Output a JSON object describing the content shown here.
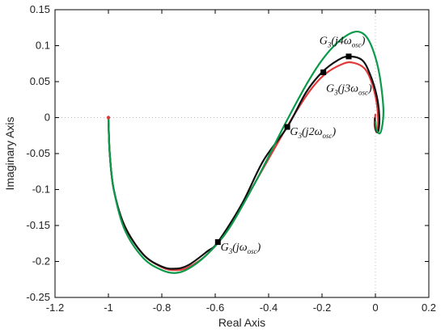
{
  "chart_data": {
    "type": "line",
    "title": "",
    "xlabel": "Real Axis",
    "ylabel": "Imaginary Axis",
    "xlim": [
      -1.2,
      0.2
    ],
    "ylim": [
      -0.25,
      0.15
    ],
    "xticks": [
      -1.2,
      -1,
      -0.8,
      -0.6,
      -0.4,
      -0.2,
      0,
      0.2
    ],
    "xtick_labels": [
      "-1.2",
      "-1",
      "-0.8",
      "-0.6",
      "-0.4",
      "-0.2",
      "0",
      "0.2"
    ],
    "yticks": [
      -0.25,
      -0.2,
      -0.15,
      -0.1,
      -0.05,
      0,
      0.05,
      0.1,
      0.15
    ],
    "ytick_labels": [
      "-0.25",
      "-0.2",
      "-0.15",
      "-0.1",
      "-0.05",
      "0",
      "0.05",
      "0.1",
      "0.15"
    ],
    "grid": false,
    "series": [
      {
        "color": "#e03a3a",
        "points": [
          [
            -1.0,
            0.0
          ],
          [
            -0.995,
            -0.05
          ],
          [
            -0.98,
            -0.1
          ],
          [
            -0.94,
            -0.15
          ],
          [
            -0.87,
            -0.19
          ],
          [
            -0.8,
            -0.208
          ],
          [
            -0.75,
            -0.212
          ],
          [
            -0.7,
            -0.208
          ],
          [
            -0.63,
            -0.19
          ],
          [
            -0.55,
            -0.155
          ],
          [
            -0.45,
            -0.09
          ],
          [
            -0.33,
            -0.012
          ],
          [
            -0.25,
            0.035
          ],
          [
            -0.19,
            0.06
          ],
          [
            -0.12,
            0.075
          ],
          [
            -0.08,
            0.076
          ],
          [
            -0.04,
            0.068
          ],
          [
            -0.015,
            0.05
          ],
          [
            0.005,
            0.02
          ],
          [
            0.01,
            -0.01
          ],
          [
            0.004,
            -0.02
          ],
          [
            -0.003,
            -0.01
          ],
          [
            0.0,
            0.005
          ]
        ]
      },
      {
        "color": "#111111",
        "points": [
          [
            -1.0,
            0.0
          ],
          [
            -0.995,
            -0.05
          ],
          [
            -0.98,
            -0.1
          ],
          [
            -0.94,
            -0.15
          ],
          [
            -0.87,
            -0.19
          ],
          [
            -0.8,
            -0.207
          ],
          [
            -0.75,
            -0.21
          ],
          [
            -0.7,
            -0.205
          ],
          [
            -0.63,
            -0.186
          ],
          [
            -0.59,
            -0.173
          ],
          [
            -0.5,
            -0.12
          ],
          [
            -0.42,
            -0.06
          ],
          [
            -0.33,
            -0.013
          ],
          [
            -0.26,
            0.035
          ],
          [
            -0.2,
            0.063
          ],
          [
            -0.14,
            0.08
          ],
          [
            -0.1,
            0.085
          ],
          [
            -0.05,
            0.08
          ],
          [
            -0.02,
            0.06
          ],
          [
            0.005,
            0.03
          ],
          [
            0.015,
            0.0
          ],
          [
            0.01,
            -0.02
          ],
          [
            0.0,
            -0.015
          ],
          [
            -0.002,
            0.0
          ]
        ]
      },
      {
        "color": "#0a9a4a",
        "points": [
          [
            -1.0,
            0.0
          ],
          [
            -0.995,
            -0.05
          ],
          [
            -0.98,
            -0.1
          ],
          [
            -0.94,
            -0.155
          ],
          [
            -0.87,
            -0.195
          ],
          [
            -0.8,
            -0.212
          ],
          [
            -0.75,
            -0.216
          ],
          [
            -0.7,
            -0.21
          ],
          [
            -0.63,
            -0.19
          ],
          [
            -0.55,
            -0.155
          ],
          [
            -0.45,
            -0.09
          ],
          [
            -0.34,
            -0.01
          ],
          [
            -0.26,
            0.045
          ],
          [
            -0.2,
            0.08
          ],
          [
            -0.14,
            0.105
          ],
          [
            -0.08,
            0.119
          ],
          [
            -0.04,
            0.115
          ],
          [
            -0.01,
            0.095
          ],
          [
            0.015,
            0.06
          ],
          [
            0.03,
            0.01
          ],
          [
            0.02,
            -0.02
          ],
          [
            0.005,
            -0.018
          ],
          [
            0.0,
            -0.005
          ]
        ]
      }
    ],
    "start_point": {
      "x": -1.0,
      "y": 0.0
    },
    "markers": [
      {
        "x": -0.59,
        "y": -0.173
      },
      {
        "x": -0.33,
        "y": -0.013
      },
      {
        "x": -0.195,
        "y": 0.063
      },
      {
        "x": -0.1,
        "y": 0.085
      }
    ],
    "annotations": [
      {
        "main": "G",
        "sub1": "3",
        "mid": "(jω",
        "sub2": "osc",
        "end": ")",
        "x": -0.58,
        "y": -0.185
      },
      {
        "main": "G",
        "sub1": "3",
        "mid": "(j2ω",
        "sub2": "osc",
        "end": ")",
        "x": -0.32,
        "y": -0.024
      },
      {
        "main": "G",
        "sub1": "3",
        "mid": "(j3ω",
        "sub2": "osc",
        "end": ")",
        "x": -0.185,
        "y": 0.036
      },
      {
        "main": "G",
        "sub1": "3",
        "mid": "(j4ω",
        "sub2": "osc",
        "end": ")",
        "x": -0.21,
        "y": 0.102
      }
    ]
  }
}
